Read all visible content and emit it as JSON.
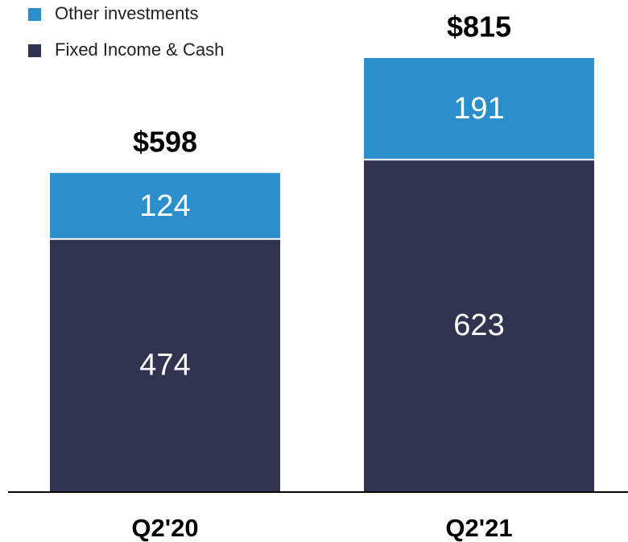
{
  "chart_data": {
    "type": "stacked_bar",
    "categories": [
      "Q2'20",
      "Q2'21"
    ],
    "series": [
      {
        "name": "Fixed Income & Cash",
        "color": "#313350",
        "values": [
          474,
          623
        ]
      },
      {
        "name": "Other investments",
        "color": "#2b8fcc",
        "values": [
          124,
          191
        ]
      }
    ],
    "totals": [
      598,
      815
    ],
    "total_labels": [
      "$598",
      "$815"
    ]
  }
}
